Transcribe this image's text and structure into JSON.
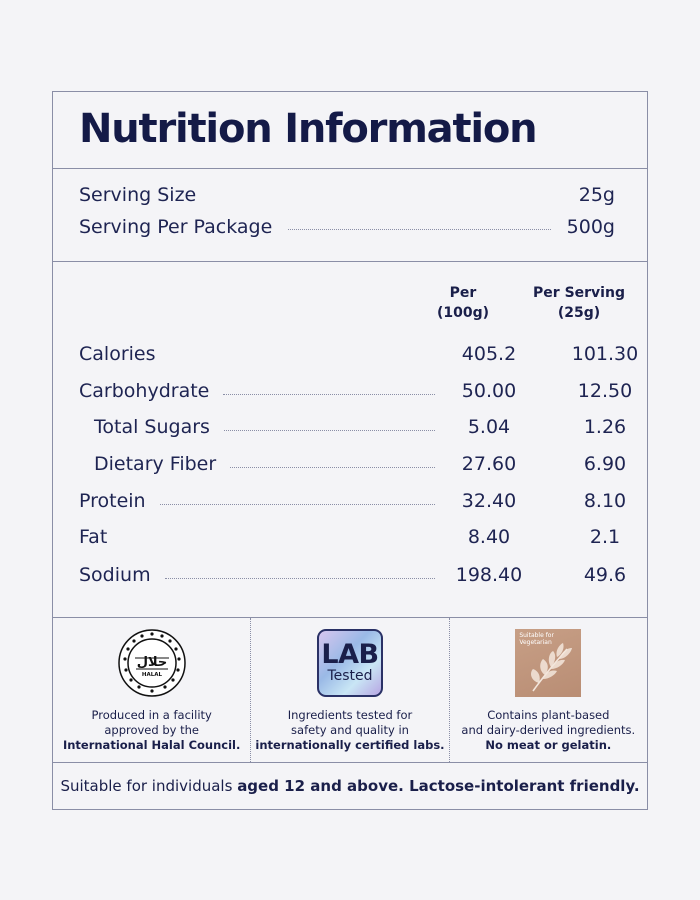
{
  "title": "Nutrition Information",
  "serving": [
    {
      "label": "Serving Size",
      "value": "25g",
      "dots": false
    },
    {
      "label": "Serving Per Package",
      "value": "500g",
      "dots": true
    }
  ],
  "columns": [
    {
      "line1": "Per",
      "line2": "(100g)"
    },
    {
      "line1": "Per Serving",
      "line2": "(25g)"
    }
  ],
  "nutrients": [
    {
      "label": "Calories",
      "per100": "405.2",
      "perServing": "101.30",
      "sub": false,
      "dots": false
    },
    {
      "label": "Carbohydrate",
      "per100": "50.00",
      "perServing": "12.50",
      "sub": false,
      "dots": true
    },
    {
      "label": "Total Sugars",
      "per100": "5.04",
      "perServing": "1.26",
      "sub": true,
      "dots": true
    },
    {
      "label": "Dietary Fiber",
      "per100": "27.60",
      "perServing": "6.90",
      "sub": true,
      "dots": true
    },
    {
      "label": "Protein",
      "per100": "32.40",
      "perServing": "8.10",
      "sub": false,
      "dots": true
    },
    {
      "label": "Fat",
      "per100": "8.40",
      "perServing": "2.1",
      "sub": false,
      "dots": false
    },
    {
      "label": "Sodium",
      "per100": "198.40",
      "perServing": "49.6",
      "sub": false,
      "dots": true
    }
  ],
  "badges": {
    "halal": {
      "icon": "halal-logo-icon",
      "logo_text": "حلال",
      "logo_sub": "HALAL",
      "cap1": "Produced in a facility",
      "cap2": "approved by the",
      "cap3": "International Halal Council."
    },
    "lab": {
      "icon": "lab-tested-icon",
      "logo_l1": "LAB",
      "logo_l2": "Tested",
      "cap1": "Ingredients tested for",
      "cap2": "safety and quality in",
      "cap3": "internationally certified labs."
    },
    "veg": {
      "icon": "vegetarian-leaf-icon",
      "logo_text1": "Suitable for",
      "logo_text2": "Vegetarian",
      "cap1": "Contains plant-based",
      "cap2": "and dairy-derived ingredients.",
      "cap3": "No meat or gelatin."
    }
  },
  "footer": {
    "normal": "Suitable for individuals ",
    "bold": "aged 12 and above. Lactose-intolerant friendly."
  },
  "colors": {
    "text": "#1a1f4a",
    "border": "#8a8ea6",
    "background": "#f4f4f7",
    "veg_badge": "#c09680"
  }
}
